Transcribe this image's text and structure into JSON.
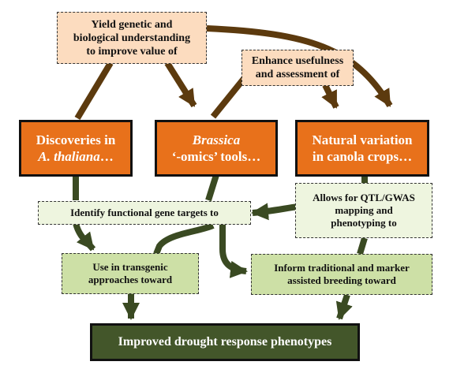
{
  "notes": {
    "yield_text": [
      "Yield genetic and",
      "biological understanding",
      "to improve value of"
    ],
    "enhance_text": [
      "Enhance usefulness",
      "and assessment of"
    ]
  },
  "main_boxes": {
    "athaliana": {
      "line1": "Discoveries in",
      "line2_italic": "A. thaliana",
      "line2_rest": "…"
    },
    "brassica": {
      "line1_italic": "Brassica",
      "line2": "‘-omics’ tools…"
    },
    "natural": {
      "line1": "Natural variation",
      "line2": "in canola crops…"
    }
  },
  "actions": {
    "identify": "Identify functional gene targets to",
    "qtl": [
      "Allows for QTL/GWAS",
      "mapping and",
      "phenotyping to"
    ],
    "transgenic": [
      "Use in transgenic",
      "approaches toward"
    ],
    "breeding": [
      "Inform traditional and marker",
      "assisted breeding toward"
    ]
  },
  "final": {
    "label": "Improved drought response phenotypes"
  },
  "colors": {
    "brown_arrow": "#5c3a0e",
    "green_arrow": "#3a4a22",
    "orange_box": "#e8711b",
    "peach_note": "#fcdcbf",
    "light_green": "#eef5df",
    "mid_green": "#cde0a6",
    "dark_green": "#43562a"
  }
}
